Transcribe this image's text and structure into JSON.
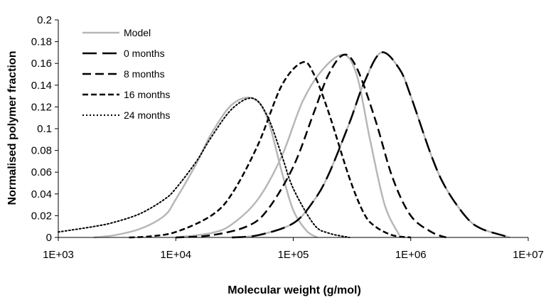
{
  "chart_data": {
    "type": "line",
    "title": "",
    "xlabel": "Molecular weight (g/mol)",
    "ylabel": "Normalised polymer fraction",
    "x_scale": "log",
    "xlim": [
      1000,
      10000000
    ],
    "ylim": [
      0,
      0.2
    ],
    "x_ticks": [
      "1E+03",
      "1E+04",
      "1E+05",
      "1E+06",
      "1E+07"
    ],
    "y_ticks": [
      "0",
      "0.02",
      "0.04",
      "0.06",
      "0.08",
      "0.1",
      "0.12",
      "0.14",
      "0.16",
      "0.18",
      "0.2"
    ],
    "grid": false,
    "legend_position": "top-left",
    "legend": [
      {
        "label": "Model",
        "style": "solid",
        "color": "#b7b7b7"
      },
      {
        "label": "0 months",
        "style": "long-dash",
        "color": "#000000"
      },
      {
        "label": "8 months",
        "style": "dash",
        "color": "#000000"
      },
      {
        "label": "16 months",
        "style": "short-dash",
        "color": "#000000"
      },
      {
        "label": "24 months",
        "style": "dot",
        "color": "#000000"
      }
    ],
    "series": [
      {
        "name": "0 months",
        "style": "long-dash",
        "color": "#000000",
        "peak_x": 560000,
        "peak_y": 0.17,
        "x": [
          30000,
          50000,
          100000,
          150000,
          200000,
          300000,
          400000,
          560000,
          800000,
          1000000,
          1500000,
          2000000,
          3000000,
          4000000,
          6000000,
          7000000
        ],
        "y": [
          0.0,
          0.002,
          0.013,
          0.034,
          0.058,
          0.105,
          0.142,
          0.17,
          0.155,
          0.13,
          0.075,
          0.045,
          0.018,
          0.008,
          0.002,
          0.0
        ]
      },
      {
        "name": "8 months",
        "style": "dash",
        "color": "#000000",
        "peak_x": 270000,
        "peak_y": 0.168,
        "x": [
          10000,
          20000,
          40000,
          60000,
          100000,
          150000,
          200000,
          270000,
          350000,
          500000,
          700000,
          1000000,
          1500000,
          2000000
        ],
        "y": [
          0.0,
          0.002,
          0.01,
          0.025,
          0.065,
          0.115,
          0.15,
          0.168,
          0.155,
          0.108,
          0.055,
          0.02,
          0.005,
          0.0
        ]
      },
      {
        "name": "16 months",
        "style": "short-dash",
        "color": "#000000",
        "peak_x": 120000,
        "peak_y": 0.161,
        "x": [
          4000,
          6000,
          10000,
          20000,
          30000,
          50000,
          80000,
          120000,
          150000,
          200000,
          300000,
          400000,
          500000,
          700000,
          1000000
        ],
        "y": [
          0.0,
          0.001,
          0.005,
          0.02,
          0.04,
          0.085,
          0.14,
          0.161,
          0.15,
          0.115,
          0.055,
          0.022,
          0.01,
          0.002,
          0.0
        ]
      },
      {
        "name": "24 months",
        "style": "dot",
        "color": "#000000",
        "peak_x": 45000,
        "peak_y": 0.128,
        "x": [
          1000,
          2000,
          3000,
          5000,
          8000,
          10000,
          15000,
          20000,
          30000,
          45000,
          60000,
          80000,
          100000,
          150000,
          200000,
          300000
        ],
        "y": [
          0.005,
          0.01,
          0.014,
          0.022,
          0.035,
          0.045,
          0.07,
          0.092,
          0.118,
          0.128,
          0.112,
          0.075,
          0.045,
          0.012,
          0.004,
          0.0
        ]
      },
      {
        "name": "Model",
        "style": "solid",
        "color": "#b7b7b7",
        "curves": [
          {
            "x": [
              2000,
              3000,
              5000,
              8000,
              10000,
              15000,
              20000,
              30000,
              45000,
              60000,
              80000,
              100000,
              130000,
              160000
            ],
            "y": [
              0.0,
              0.002,
              0.008,
              0.02,
              0.035,
              0.068,
              0.095,
              0.122,
              0.128,
              0.11,
              0.06,
              0.025,
              0.006,
              0.0
            ]
          },
          {
            "x": [
              10000,
              20000,
              30000,
              50000,
              80000,
              120000,
              180000,
              270000,
              350000,
              450000,
              600000,
              800000
            ],
            "y": [
              0.0,
              0.004,
              0.012,
              0.035,
              0.075,
              0.125,
              0.155,
              0.168,
              0.148,
              0.09,
              0.03,
              0.002
            ]
          },
          {
            "x": [
              30000,
              50000,
              100000,
              150000,
              200000,
              300000,
              400000,
              560000,
              800000,
              1000000,
              1500000,
              2000000,
              3000000,
              4000000,
              6000000,
              7000000
            ],
            "y": [
              0.0,
              0.002,
              0.013,
              0.034,
              0.058,
              0.105,
              0.142,
              0.17,
              0.155,
              0.13,
              0.075,
              0.045,
              0.018,
              0.008,
              0.002,
              0.0
            ]
          }
        ]
      }
    ]
  }
}
